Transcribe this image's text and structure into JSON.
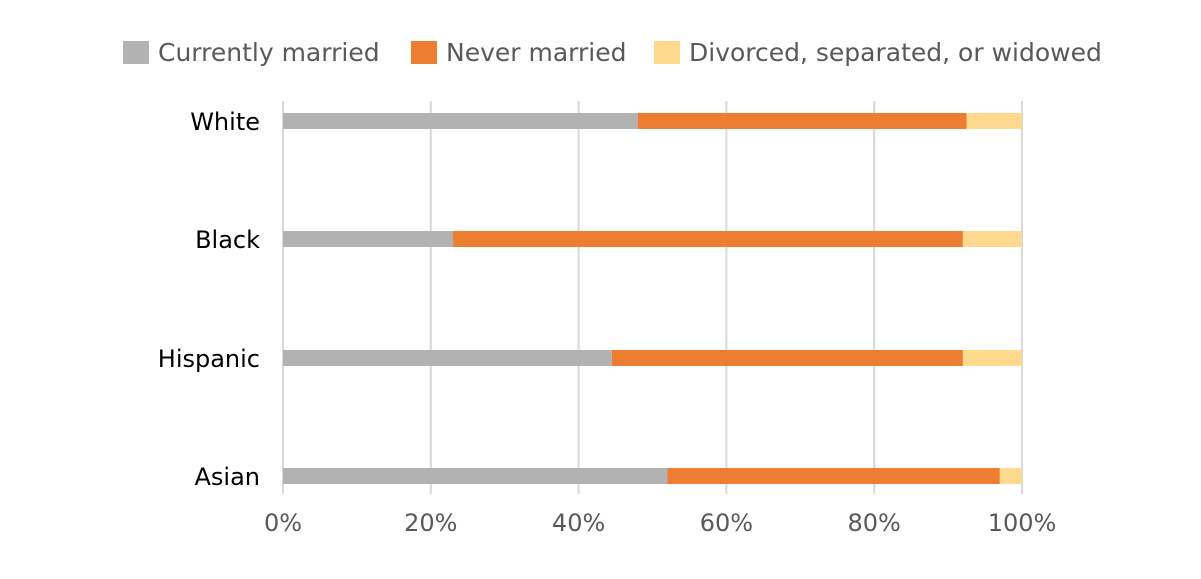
{
  "chart_data": {
    "type": "bar",
    "orientation": "horizontal",
    "stacked": true,
    "categories": [
      "White",
      "Black",
      "Hispanic",
      "Asian"
    ],
    "series": [
      {
        "name": "Currently married",
        "color": "#b2b2b2",
        "values": [
          48,
          23,
          44.5,
          52
        ]
      },
      {
        "name": "Never married",
        "color": "#ed7d31",
        "values": [
          44.5,
          69,
          47.5,
          45
        ]
      },
      {
        "name": "Divorced, separated, or widowed",
        "color": "#ffd98e",
        "values": [
          7.5,
          8,
          8,
          3
        ]
      }
    ],
    "xaxis": {
      "min": 0,
      "max": 100,
      "ticks": [
        0,
        20,
        40,
        60,
        80,
        100
      ],
      "tick_labels": [
        "0%",
        "20%",
        "40%",
        "60%",
        "80%",
        "100%"
      ]
    },
    "grid": true,
    "legend": "top",
    "title": "",
    "xlabel": "",
    "ylabel": ""
  }
}
